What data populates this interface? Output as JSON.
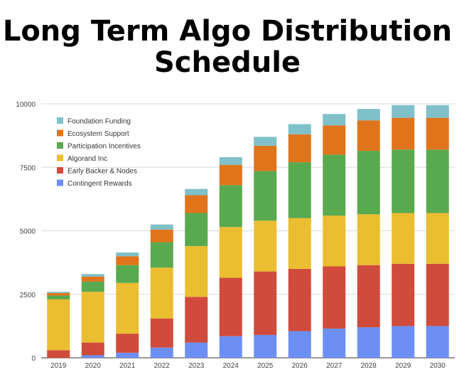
{
  "title_line1": "Long Term Algo Distribution",
  "title_line2": "Schedule",
  "chart_data": {
    "type": "bar",
    "stacked": true,
    "categories": [
      "2019",
      "2020",
      "2021",
      "2022",
      "2023",
      "2024",
      "2025",
      "2026",
      "2027",
      "2028",
      "2029",
      "2030"
    ],
    "ylim": [
      0,
      10000
    ],
    "yticks": [
      0,
      2500,
      5000,
      7500,
      10000
    ],
    "grid": true,
    "legend_position": "top-left",
    "series": [
      {
        "name": "Contingent Rewards",
        "color": "#6d8ff3",
        "values": [
          0,
          100,
          200,
          400,
          600,
          850,
          900,
          1050,
          1150,
          1200,
          1250,
          1250
        ]
      },
      {
        "name": "Early Backer & Nodes",
        "color": "#d04b3b",
        "values": [
          300,
          500,
          750,
          1150,
          1800,
          2300,
          2500,
          2450,
          2450,
          2450,
          2450,
          2450
        ]
      },
      {
        "name": "Algorand Inc",
        "color": "#ebbd30",
        "values": [
          2000,
          2000,
          2000,
          2000,
          2000,
          2000,
          2000,
          2000,
          2000,
          2000,
          2000,
          2000
        ]
      },
      {
        "name": "Participation Incentives",
        "color": "#59a94f",
        "values": [
          150,
          400,
          700,
          1000,
          1300,
          1650,
          1950,
          2200,
          2400,
          2500,
          2500,
          2500
        ]
      },
      {
        "name": "Ecosystem Support",
        "color": "#e0741b",
        "values": [
          100,
          200,
          350,
          500,
          700,
          800,
          1000,
          1100,
          1150,
          1200,
          1250,
          1250
        ]
      },
      {
        "name": "Foundation Funding",
        "color": "#7fc0c9",
        "values": [
          50,
          100,
          150,
          200,
          250,
          300,
          350,
          400,
          450,
          450,
          500,
          500
        ]
      }
    ]
  }
}
